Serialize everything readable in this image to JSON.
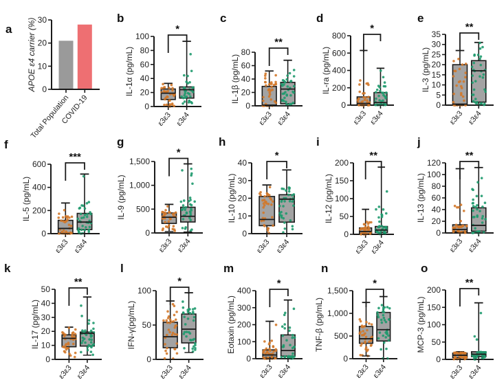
{
  "figure": {
    "colors": {
      "axis": "#1a1a1a",
      "box_fill": "#a3a3a3",
      "e3e3": "#d2782a",
      "e3e4": "#1f9a6e",
      "total_population": "#9a9a9a",
      "covid19": "#ee6f72"
    }
  },
  "chart_data": [
    {
      "panel": "a",
      "type": "bar",
      "title": "",
      "ylabel": "APOE ε4 carrier (%)",
      "xlabel": "",
      "categories": [
        "Total Population",
        "COVID-19"
      ],
      "values": [
        21,
        28
      ],
      "ylim": [
        0,
        30
      ],
      "yticks": [
        "0",
        "10",
        "20",
        "30"
      ],
      "ytick_values": [
        0,
        10,
        20,
        30
      ]
    },
    {
      "panel": "b",
      "type": "box",
      "ylabel": "IL-1α (pg/mL)",
      "categories": [
        "ε3ε3",
        "ε3ε4"
      ],
      "ylim": [
        0,
        100
      ],
      "yticks": [
        "0",
        "20",
        "40",
        "60",
        "80",
        "100"
      ],
      "ytick_values": [
        0,
        20,
        40,
        60,
        80,
        100
      ],
      "significance": "*",
      "series": [
        {
          "name": "ε3ε3",
          "min": 0,
          "q1": 10,
          "median": 19,
          "q3": 25,
          "max": 33
        },
        {
          "name": "ε3ε4",
          "min": 0,
          "q1": 12,
          "median": 24,
          "q3": 28,
          "max": 93
        }
      ]
    },
    {
      "panel": "c",
      "type": "box",
      "ylabel": "IL-1β (pg/mL)",
      "categories": [
        "ε3ε3",
        "ε3ε4"
      ],
      "ylim": [
        0,
        80
      ],
      "yticks": [
        "0",
        "20",
        "40",
        "60",
        "80"
      ],
      "ytick_values": [
        0,
        20,
        40,
        60,
        80
      ],
      "significance": "**",
      "series": [
        {
          "name": "ε3ε3",
          "min": 0,
          "q1": 0,
          "median": 1,
          "q3": 29,
          "max": 52
        },
        {
          "name": "ε3ε4",
          "min": 0,
          "q1": 3,
          "median": 25,
          "q3": 35,
          "max": 68
        }
      ]
    },
    {
      "panel": "d",
      "type": "box",
      "ylabel": "IL-ra (pg/mL)",
      "categories": [
        "ε3ε3",
        "ε3ε4"
      ],
      "ylim": [
        0,
        800
      ],
      "yticks": [
        "0",
        "200",
        "400",
        "600",
        "800"
      ],
      "ytick_values": [
        0,
        200,
        400,
        600,
        800
      ],
      "significance": "*",
      "series": [
        {
          "name": "ε3ε3",
          "min": 0,
          "q1": 0,
          "median": 20,
          "q3": 95,
          "max": 630
        },
        {
          "name": "ε3ε4",
          "min": 0,
          "q1": 5,
          "median": 30,
          "q3": 145,
          "max": 425
        }
      ]
    },
    {
      "panel": "e",
      "type": "box",
      "ylabel": "IL-3 (pg/mL)",
      "categories": [
        "ε3ε3",
        "ε3ε4"
      ],
      "ylim": [
        0,
        35
      ],
      "yticks": [
        "0",
        "5",
        "10",
        "15",
        "20",
        "25",
        "30",
        "35"
      ],
      "ytick_values": [
        0,
        5,
        10,
        15,
        20,
        25,
        30,
        35
      ],
      "significance": "**",
      "series": [
        {
          "name": "ε3ε3",
          "min": 0,
          "q1": 0,
          "median": 0.5,
          "q3": 20,
          "max": 27
        },
        {
          "name": "ε3ε4",
          "min": 0,
          "q1": 1.5,
          "median": 17,
          "q3": 22,
          "max": 31
        }
      ]
    },
    {
      "panel": "f",
      "type": "box",
      "ylabel": "IL-5 (pg/mL)",
      "categories": [
        "ε3ε3",
        "ε3ε4"
      ],
      "ylim": [
        0,
        600
      ],
      "yticks": [
        "0",
        "200",
        "400",
        "600"
      ],
      "ytick_values": [
        0,
        200,
        400,
        600
      ],
      "significance": "***",
      "series": [
        {
          "name": "ε3ε3",
          "min": 0,
          "q1": 5,
          "median": 45,
          "q3": 115,
          "max": 265
        },
        {
          "name": "ε3ε4",
          "min": 0,
          "q1": 35,
          "median": 100,
          "q3": 175,
          "max": 515
        }
      ]
    },
    {
      "panel": "g",
      "type": "box",
      "ylabel": "IL-9 (pg/mL)",
      "categories": [
        "ε3ε3",
        "ε3ε4"
      ],
      "ylim": [
        0,
        1500
      ],
      "yticks": [
        "0",
        "500",
        "1,000",
        "1,500"
      ],
      "ytick_values": [
        0,
        500,
        1000,
        1500
      ],
      "significance": "*",
      "series": [
        {
          "name": "ε3ε3",
          "min": 30,
          "q1": 200,
          "median": 330,
          "q3": 420,
          "max": 600
        },
        {
          "name": "ε3ε4",
          "min": 20,
          "q1": 230,
          "median": 350,
          "q3": 540,
          "max": 1450
        }
      ]
    },
    {
      "panel": "h",
      "type": "box",
      "ylabel": "IL-10 (pg/mL)",
      "categories": [
        "ε3ε3",
        "ε3ε4"
      ],
      "ylim": [
        0,
        40
      ],
      "yticks": [
        "0",
        "10",
        "20",
        "30",
        "40"
      ],
      "ytick_values": [
        0,
        10,
        20,
        30,
        40
      ],
      "significance": "*",
      "series": [
        {
          "name": "ε3ε3",
          "min": 0,
          "q1": 4.5,
          "median": 8,
          "q3": 21,
          "max": 27.5
        },
        {
          "name": "ε3ε4",
          "min": 0,
          "q1": 6.5,
          "median": 19.5,
          "q3": 22,
          "max": 36
        }
      ]
    },
    {
      "panel": "i",
      "type": "box",
      "ylabel": "IL-12 (pg/mL)",
      "categories": [
        "ε3ε3",
        "ε3ε4"
      ],
      "ylim": [
        0,
        200
      ],
      "yticks": [
        "0",
        "50",
        "100",
        "150",
        "200"
      ],
      "ytick_values": [
        0,
        50,
        100,
        150,
        200
      ],
      "significance": "**",
      "series": [
        {
          "name": "ε3ε3",
          "min": 0,
          "q1": 2,
          "median": 8,
          "q3": 18,
          "max": 70
        },
        {
          "name": "ε3ε4",
          "min": 0,
          "q1": 5,
          "median": 12,
          "q3": 22,
          "max": 188
        }
      ]
    },
    {
      "panel": "j",
      "type": "box",
      "ylabel": "IL-13 (pg/mL)",
      "categories": [
        "ε3ε3",
        "ε3ε4"
      ],
      "ylim": [
        0,
        120
      ],
      "yticks": [
        "0",
        "20",
        "40",
        "60",
        "80",
        "100",
        "120"
      ],
      "ytick_values": [
        0,
        20,
        40,
        60,
        80,
        100,
        120
      ],
      "significance": "**",
      "series": [
        {
          "name": "ε3ε3",
          "min": 0,
          "q1": 2,
          "median": 6,
          "q3": 14,
          "max": 110
        },
        {
          "name": "ε3ε4",
          "min": 0,
          "q1": 3,
          "median": 13,
          "q3": 43,
          "max": 112
        }
      ]
    },
    {
      "panel": "k",
      "type": "box",
      "ylabel": "IL-17 (pg/mL)",
      "categories": [
        "ε3ε3",
        "ε3ε4"
      ],
      "ylim": [
        0,
        50
      ],
      "yticks": [
        "0",
        "10",
        "20",
        "30",
        "40",
        "50"
      ],
      "ytick_values": [
        0,
        10,
        20,
        30,
        40,
        50
      ],
      "significance": "**",
      "series": [
        {
          "name": "ε3ε3",
          "min": 0,
          "q1": 9,
          "median": 15,
          "q3": 17.5,
          "max": 23
        },
        {
          "name": "ε3ε4",
          "min": 3,
          "q1": 9.5,
          "median": 18.5,
          "q3": 19.5,
          "max": 44.5
        }
      ]
    },
    {
      "panel": "l",
      "type": "box",
      "ylabel": "IFN-γ(pg/mL)",
      "categories": [
        "ε3ε3",
        "ε3ε4"
      ],
      "ylim": [
        0,
        100
      ],
      "yticks": [
        "0",
        "50",
        "100"
      ],
      "ytick_values": [
        0,
        50,
        100
      ],
      "significance": "*",
      "series": [
        {
          "name": "ε3ε3",
          "min": 0,
          "q1": 17,
          "median": 33,
          "q3": 54,
          "max": 85
        },
        {
          "name": "ε3ε4",
          "min": 10,
          "q1": 24,
          "median": 44,
          "q3": 66,
          "max": 97
        }
      ]
    },
    {
      "panel": "m",
      "type": "box",
      "ylabel": "Eotaxin (pg/mL)",
      "categories": [
        "ε3ε3",
        "ε3ε4"
      ],
      "ylim": [
        0,
        400
      ],
      "yticks": [
        "0",
        "100",
        "200",
        "300",
        "400"
      ],
      "ytick_values": [
        0,
        100,
        200,
        300,
        400
      ],
      "significance": "*",
      "series": [
        {
          "name": "ε3ε3",
          "min": 0,
          "q1": 8,
          "median": 22,
          "q3": 52,
          "max": 220
        },
        {
          "name": "ε3ε4",
          "min": 0,
          "q1": 15,
          "median": 48,
          "q3": 140,
          "max": 345
        }
      ]
    },
    {
      "panel": "n",
      "type": "box",
      "ylabel": "TNF-β (pg/mL)",
      "categories": [
        "ε3ε3",
        "ε3ε4"
      ],
      "ylim": [
        0,
        1500
      ],
      "yticks": [
        "0",
        "500",
        "1,000",
        "1,500"
      ],
      "ytick_values": [
        0,
        500,
        1000,
        1500
      ],
      "significance": "*",
      "series": [
        {
          "name": "ε3ε3",
          "min": 60,
          "q1": 340,
          "median": 440,
          "q3": 710,
          "max": 1240
        },
        {
          "name": "ε3ε4",
          "min": 0,
          "q1": 390,
          "median": 640,
          "q3": 1020,
          "max": 1370
        }
      ]
    },
    {
      "panel": "o",
      "type": "box",
      "ylabel": "MCP-3 (pg/mL)",
      "categories": [
        "ε3ε3",
        "ε3ε4"
      ],
      "ylim": [
        0,
        200
      ],
      "yticks": [
        "0",
        "50",
        "100",
        "150",
        "200"
      ],
      "ytick_values": [
        0,
        50,
        100,
        150,
        200
      ],
      "significance": "**",
      "series": [
        {
          "name": "ε3ε3",
          "min": 0,
          "q1": 5,
          "median": 12,
          "q3": 18,
          "max": 22
        },
        {
          "name": "ε3ε4",
          "min": 0,
          "q1": 8,
          "median": 15,
          "q3": 22,
          "max": 163
        }
      ]
    }
  ]
}
